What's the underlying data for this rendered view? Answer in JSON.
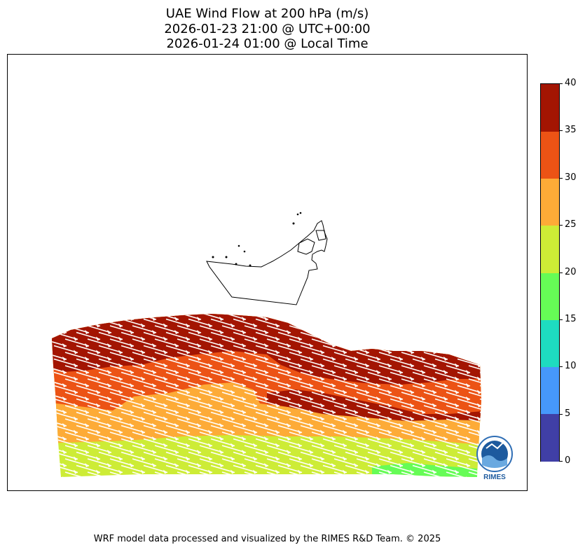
{
  "title": {
    "line1": "UAE Wind Flow at 200 hPa (m/s)",
    "line2": "2026-01-23 21:00 @ UTC+00:00",
    "line3": "2026-01-24 01:00 @ Local Time"
  },
  "colorbar": {
    "ticks": [
      "0",
      "5",
      "10",
      "15",
      "20",
      "25",
      "30",
      "35",
      "40"
    ],
    "colors": [
      "#403fa6",
      "#4698fb",
      "#1edcc0",
      "#66fc56",
      "#cdec36",
      "#fdab37",
      "#ec5315",
      "#a31502"
    ]
  },
  "logo": {
    "text": "RIMES"
  },
  "footer": {
    "credit": "WRF model data processed and visualized by the RIMES R&D Team. © 2025"
  }
}
